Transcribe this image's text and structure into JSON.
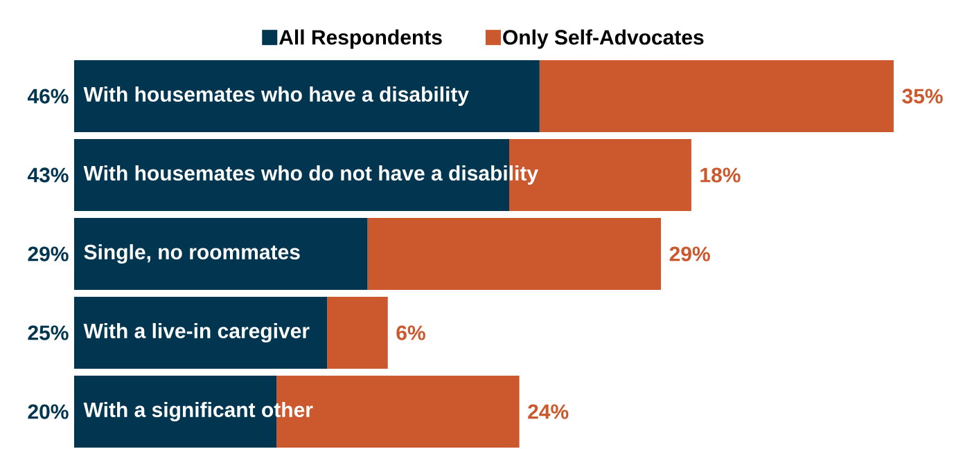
{
  "chart_data": {
    "type": "bar",
    "orientation": "horizontal",
    "stacked": true,
    "legend": "top",
    "categories": [
      "With housemates who have a disability",
      "With housemates who do not have a disability",
      "Single, no roommates",
      "With a live-in caregiver",
      "With a significant other"
    ],
    "series": [
      {
        "name": "All Respondents",
        "color": "#02354f",
        "values": [
          46,
          43,
          29,
          25,
          20
        ],
        "value_labels": [
          "46%",
          "43%",
          "29%",
          "25%",
          "20%"
        ]
      },
      {
        "name": "Only Self-Advocates",
        "color": "#cc582e",
        "values": [
          35,
          18,
          29,
          6,
          24
        ],
        "value_labels": [
          "35%",
          "18%",
          "29%",
          "6%",
          "24%"
        ]
      }
    ]
  }
}
